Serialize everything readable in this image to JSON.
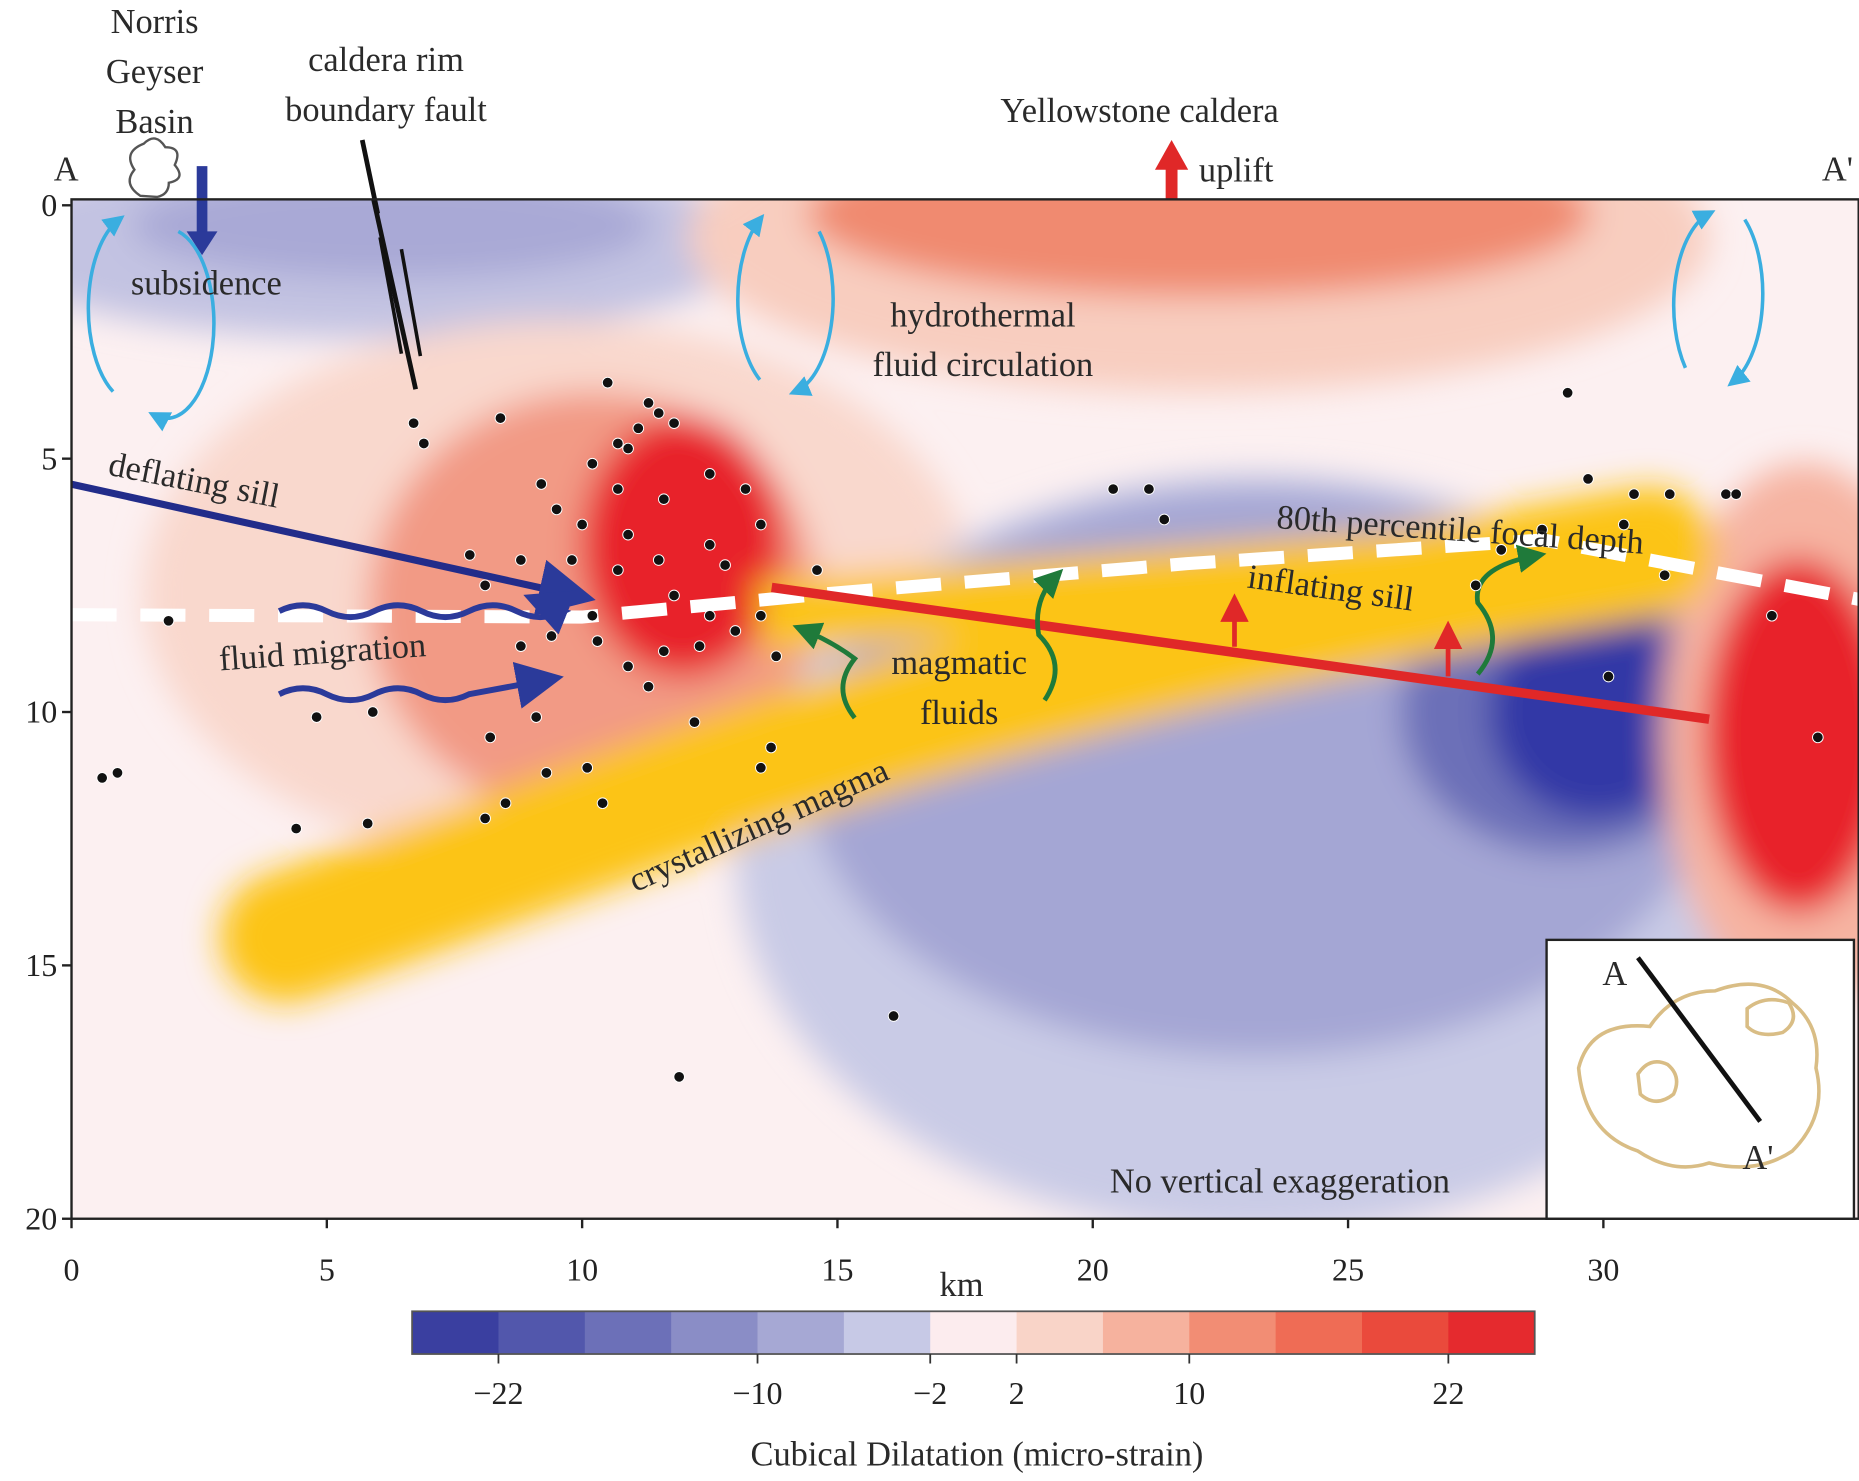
{
  "chart_data": {
    "type": "scatter",
    "x_label": "km",
    "xlim": [
      0,
      35
    ],
    "xticks": [
      0,
      5,
      10,
      15,
      20,
      25,
      30
    ],
    "ylim": [
      0,
      20
    ],
    "yticks": [
      0,
      5,
      10,
      15,
      20
    ],
    "series": [
      {
        "color": "#111111",
        "x": [
          1.9,
          0.6,
          0.9,
          6.7,
          6.9,
          8.4,
          10.5,
          11.3,
          11.5,
          11.1,
          11.8,
          10.7,
          10.2,
          10.9,
          9.2,
          9.5,
          10.7,
          11.6,
          12.5,
          13.2,
          13.5,
          7.8,
          8.1,
          8.8,
          9.4,
          10.2,
          10.9,
          11.3,
          11.6,
          12.3,
          12.5,
          13.0,
          13.5,
          13.8,
          14.6,
          13.7,
          13.5,
          12.2,
          9.1,
          8.2,
          9.3,
          10.1,
          10.4,
          8.5,
          8.1,
          5.8,
          4.4,
          4.8,
          5.9,
          8.8,
          9.8,
          10.7,
          11.5,
          12.5,
          20.4,
          21.1,
          21.4,
          29.3,
          29.7,
          30.6,
          31.3,
          30.4,
          31.2,
          32.4,
          32.6,
          33.3,
          30.1,
          34.2,
          27.5,
          28.0,
          28.8,
          16.1,
          11.9,
          10.3,
          11.8,
          12.8,
          10.9,
          10.0
        ],
        "values": [
          8.2,
          11.3,
          11.2,
          4.3,
          4.7,
          4.2,
          3.5,
          3.9,
          4.1,
          4.4,
          4.3,
          4.7,
          5.1,
          4.8,
          5.5,
          6.0,
          5.6,
          5.8,
          5.3,
          5.6,
          6.3,
          6.9,
          7.5,
          8.7,
          8.5,
          8.1,
          9.1,
          9.5,
          8.8,
          8.7,
          8.1,
          8.4,
          8.1,
          8.9,
          7.2,
          10.7,
          11.1,
          10.2,
          10.1,
          10.5,
          11.2,
          11.1,
          11.8,
          11.8,
          12.1,
          12.2,
          12.3,
          10.1,
          10.0,
          7.0,
          7.0,
          7.2,
          7.0,
          6.7,
          5.6,
          5.6,
          6.2,
          3.7,
          5.4,
          5.7,
          5.7,
          6.3,
          7.3,
          5.7,
          5.7,
          8.1,
          9.3,
          10.5,
          7.5,
          6.8,
          6.4,
          16.0,
          17.2,
          8.6,
          7.7,
          7.1,
          6.5,
          6.3
        ]
      }
    ],
    "annotations": {
      "norris": [
        "Norris",
        "Geyser",
        "Basin"
      ],
      "fault": [
        "caldera rim",
        "boundary fault"
      ],
      "caldera": "Yellowstone caldera",
      "uplift": "uplift",
      "start": "A",
      "end": "A'",
      "subsidence": "subsidence",
      "hydro": [
        "hydrothermal",
        "fluid circulation"
      ],
      "deflating": "deflating sill",
      "migration": "fluid migration",
      "magmatic": [
        "magmatic",
        "fluids"
      ],
      "crystallizing": "crystallizing magma",
      "percentile": "80th percentile focal depth",
      "inflating": "inflating sill",
      "exaggeration": "No vertical exaggeration"
    },
    "inset": {
      "labels": [
        "A",
        "A'"
      ]
    },
    "colorbar": {
      "title": "Cubical Dilatation (micro-strain)",
      "lim": [
        -26,
        26
      ],
      "colors": [
        "#3a3fa0",
        "#5257ac",
        "#6c70b8",
        "#8a8dc6",
        "#a6a8d4",
        "#c7c9e6",
        "#fcecee",
        "#f9d4c8",
        "#f6b29e",
        "#f28d74",
        "#ef6c55",
        "#ea4a3c",
        "#e52a2e"
      ],
      "ticks": [
        {
          "value": -22,
          "label": "−22"
        },
        {
          "value": -10,
          "label": "−10"
        },
        {
          "value": -2,
          "label": "−2"
        },
        2,
        10,
        22
      ]
    }
  }
}
